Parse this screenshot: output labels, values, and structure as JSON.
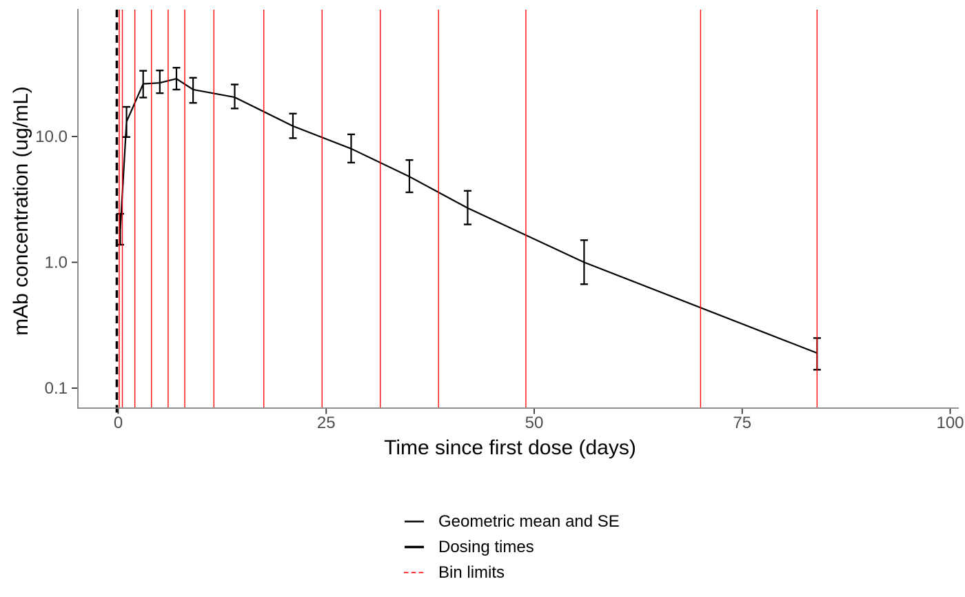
{
  "chart_data": {
    "type": "line",
    "title": "",
    "xlabel": "Time since first dose (days)",
    "ylabel": "mAb concentration (ug/mL)",
    "x_ticks": [
      0,
      25,
      50,
      75,
      100
    ],
    "y_ticks": [
      {
        "value": 0.1,
        "label": "0.1"
      },
      {
        "value": 1.0,
        "label": "1.0"
      },
      {
        "value": 10.0,
        "label": "10.0"
      }
    ],
    "y_scale": "log10",
    "xlim": [
      -5,
      101
    ],
    "ylim": [
      0.069,
      102
    ],
    "grid": "off",
    "legend_position": "bottom",
    "series": [
      {
        "name": "Geometric mean and SE",
        "x": [
          0.25,
          1,
          3,
          5,
          7,
          9,
          14,
          21,
          28,
          35,
          42,
          56,
          84
        ],
        "gm": [
          1.83,
          13.1,
          26.2,
          26.7,
          28.8,
          23.6,
          20.5,
          12.1,
          8.0,
          4.8,
          2.7,
          1.0,
          0.19
        ],
        "se_low": [
          1.38,
          9.9,
          20.4,
          22.1,
          23.6,
          18.5,
          16.7,
          9.7,
          6.2,
          3.6,
          2.0,
          0.67,
          0.14
        ],
        "se_high": [
          2.43,
          17.2,
          33.3,
          33.5,
          35.2,
          29.3,
          25.9,
          15.2,
          10.4,
          6.5,
          3.7,
          1.5,
          0.25
        ]
      }
    ],
    "dosing_times": [
      0
    ],
    "bin_limits": [
      0.125,
      0.5,
      2,
      4,
      6,
      8,
      11.5,
      17.5,
      24.5,
      31.5,
      38.5,
      49,
      70,
      84
    ],
    "legend": [
      {
        "label": "Geometric mean and SE",
        "color": "#000000",
        "style": "solid-thin"
      },
      {
        "label": "Dosing times",
        "color": "#000000",
        "style": "solid-thick"
      },
      {
        "label": "Bin limits",
        "color": "#FF0000",
        "style": "dashed"
      }
    ],
    "colors": {
      "series": "#000000",
      "dosing": "#000000",
      "bin_limit": "#FF0000",
      "axis_line": "#808080",
      "tick_mark": "#333333",
      "tick_label": "#4D4D4D",
      "axis_title": "#000000"
    }
  }
}
